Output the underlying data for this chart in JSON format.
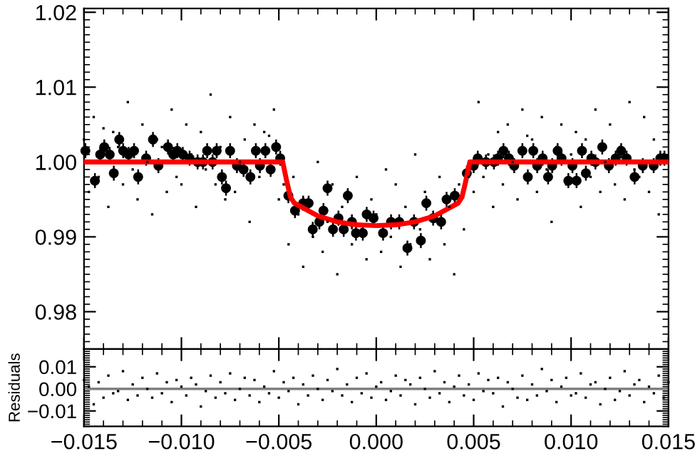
{
  "chart_data": [
    {
      "type": "scatter",
      "xlim": [
        -0.015,
        0.015
      ],
      "xticks": [
        -0.015,
        -0.01,
        -0.005,
        0.0,
        0.005,
        0.01,
        0.015
      ],
      "ylim": [
        0.975,
        1.0205
      ],
      "yticks": [
        {
          "value": 0.98,
          "label": "0.98"
        },
        {
          "value": 0.99,
          "label": "0.99"
        },
        {
          "value": 1.0,
          "label": "1.00"
        },
        {
          "value": 1.01,
          "label": "1.01"
        },
        {
          "value": 1.02,
          "label": "1.02"
        }
      ],
      "tick_labels": "y",
      "grid": false,
      "legend": false,
      "series": [
        {
          "marker": "square",
          "color": "#000000",
          "x": [
            -0.015,
            -0.01475,
            -0.0145,
            -0.01425,
            -0.014,
            -0.01375,
            -0.0135,
            -0.01325,
            -0.013,
            -0.01275,
            -0.0125,
            -0.01225,
            -0.012,
            -0.01175,
            -0.0115,
            -0.01125,
            -0.011,
            -0.01075,
            -0.0105,
            -0.01025,
            -0.01,
            -0.00975,
            -0.0095,
            -0.00925,
            -0.009,
            -0.00875,
            -0.0085,
            -0.00825,
            -0.008,
            -0.00775,
            -0.0075,
            -0.00725,
            -0.007,
            -0.00675,
            -0.0065,
            -0.00625,
            -0.006,
            -0.00575,
            -0.0055,
            -0.00525,
            -0.005,
            -0.00475,
            -0.0045,
            -0.00425,
            -0.004,
            -0.00375,
            -0.0035,
            -0.00325,
            -0.003,
            -0.00275,
            -0.0025,
            -0.00225,
            -0.002,
            -0.00175,
            -0.0015,
            -0.00125,
            -0.001,
            -0.00075,
            -0.0005,
            -0.00025,
            0.0,
            0.00025,
            0.0005,
            0.00075,
            0.001,
            0.00125,
            0.0015,
            0.00175,
            0.002,
            0.00225,
            0.0025,
            0.00275,
            0.003,
            0.00325,
            0.0035,
            0.00375,
            0.004,
            0.00425,
            0.0045,
            0.00475,
            0.005,
            0.00525,
            0.0055,
            0.00575,
            0.006,
            0.00625,
            0.0065,
            0.00675,
            0.007,
            0.00725,
            0.0075,
            0.00775,
            0.008,
            0.00825,
            0.0085,
            0.00875,
            0.009,
            0.00925,
            0.0095,
            0.00975,
            0.01,
            0.01025,
            0.0105,
            0.01075,
            0.011,
            0.01125,
            0.0115,
            0.01175,
            0.012,
            0.01225,
            0.0125,
            0.01275,
            0.013,
            0.01325,
            0.0135,
            0.01375,
            0.014,
            0.01425,
            0.0145,
            0.01475,
            0.015
          ],
          "values": [
            1.003,
            0.996,
            1.006,
            0.998,
            1.0045,
            0.994,
            1.004,
            1.002,
            0.997,
            1.008,
            0.999,
            0.995,
            1.005,
            1.0,
            0.993,
            1.003,
            1.002,
            0.996,
            1.007,
            0.998,
            0.997,
            1.005,
            1.001,
            0.994,
            1.004,
            0.999,
            1.009,
            0.997,
            1.002,
            0.995,
            1.006,
            0.996,
            1.0,
            1.003,
            0.992,
            1.005,
            0.998,
            1.004,
            1.0035,
            1.007,
            0.995,
            0.997,
            0.989,
            0.998,
            0.993,
            0.986,
            0.995,
            0.99,
            1.0,
            0.988,
            0.992,
            0.997,
            0.985,
            0.994,
            0.996,
            0.989,
            0.998,
            0.991,
            0.987,
            0.995,
            0.993,
            0.988,
            0.999,
            0.99,
            0.997,
            0.986,
            0.994,
            0.989,
            1.001,
            0.991,
            0.996,
            0.987,
            0.992,
            0.998,
            0.989,
            0.994,
            0.985,
            0.997,
            0.991,
            0.998,
            0.996,
            1.008,
            0.998,
            1.001,
            0.994,
            1.004,
            0.997,
            1.005,
            1.0,
            0.995,
            1.007,
            1.0035,
            1.003,
            0.996,
            1.006,
            0.999,
            0.992,
            1.002,
            1.005,
            0.997,
            1.001,
            1.004,
            0.994,
            1.003,
            0.998,
            1.007,
            0.996,
            1.0,
            1.005,
            0.997,
            1.002,
            0.995,
            1.008,
            0.999,
            0.998,
            1.006,
            0.996,
            1.003,
            0.993,
            1.001,
            1.004
          ]
        },
        {
          "marker": "circle",
          "color": "#000000",
          "x": [
            -0.01493,
            -0.01444,
            -0.01417,
            -0.01396,
            -0.01368,
            -0.01347,
            -0.01319,
            -0.01299,
            -0.01271,
            -0.01243,
            -0.01222,
            -0.01181,
            -0.01146,
            -0.01118,
            -0.01069,
            -0.01042,
            -0.01021,
            -0.00993,
            -0.00958,
            -0.00917,
            -0.00889,
            -0.00868,
            -0.0084,
            -0.00819,
            -0.00792,
            -0.00771,
            -0.0075,
            -0.00715,
            -0.00681,
            -0.00646,
            -0.00618,
            -0.00597,
            -0.00569,
            -0.00542,
            -0.00514,
            -0.00493,
            -0.00451,
            -0.00417,
            -0.00375,
            -0.00347,
            -0.00326,
            -0.00292,
            -0.00271,
            -0.0025,
            -0.00222,
            -0.00194,
            -0.00167,
            -0.00146,
            -0.00125,
            -0.00104,
            -0.00069,
            -0.00049,
            -0.00014,
            0.00035,
            0.00076,
            0.00118,
            0.0016,
            0.00194,
            0.00229,
            0.00257,
            0.00292,
            0.00333,
            0.00361,
            0.00403,
            0.00465,
            0.005,
            0.00521,
            0.00563,
            0.00604,
            0.00625,
            0.00653,
            0.00681,
            0.00708,
            0.0075,
            0.00778,
            0.00806,
            0.00826,
            0.00854,
            0.00882,
            0.00903,
            0.00931,
            0.00951,
            0.00986,
            0.01007,
            0.01028,
            0.01056,
            0.01076,
            0.01104,
            0.01125,
            0.0116,
            0.01194,
            0.01229,
            0.01257,
            0.01285,
            0.01326,
            0.01368,
            0.01424,
            0.01458,
            0.01479
          ],
          "values": [
            1.0015,
            0.9975,
            1.001,
            1.002,
            1.001,
            0.9985,
            1.003,
            1.0015,
            1.001,
            1.0015,
            0.998,
            1.0005,
            1.003,
            0.9995,
            1.002,
            1.001,
            1.0015,
            1.001,
            1.0005,
            1.0,
            1.0,
            1.0015,
            1.0,
            1.0015,
            0.998,
            0.9965,
            1.0015,
            0.9995,
            0.999,
            0.998,
            1.0015,
            0.9995,
            1.0015,
            0.999,
            1.002,
            1.0005,
            0.9955,
            0.9935,
            0.9945,
            0.9945,
            0.991,
            0.992,
            0.9935,
            0.9965,
            0.991,
            0.9925,
            0.991,
            0.9955,
            0.992,
            0.9905,
            0.9905,
            0.993,
            0.9925,
            0.9905,
            0.992,
            0.992,
            0.9885,
            0.992,
            0.9895,
            0.9945,
            0.9925,
            0.992,
            0.995,
            0.9955,
            0.9985,
            0.9995,
            1.0005,
            1.0,
            1.0,
            1.0005,
            1.0015,
            1.0005,
            0.9995,
            1.0015,
            0.998,
            1.0015,
            0.9995,
            1.0005,
            0.998,
            0.9995,
            1.0015,
            1.0005,
            0.9975,
            0.9995,
            0.9975,
            1.0015,
            0.9985,
            1.0005,
            1.0,
            1.002,
            0.9995,
            1.0005,
            1.0015,
            1.0005,
            0.998,
            0.9995,
            0.9995,
            1.0005,
            1.0005
          ],
          "errors": [
            0.001,
            0.001,
            0.001,
            0.001,
            0.001,
            0.001,
            0.001,
            0.001,
            0.001,
            0.001,
            0.001,
            0.001,
            0.001,
            0.001,
            0.001,
            0.001,
            0.001,
            0.001,
            0.001,
            0.001,
            0.001,
            0.001,
            0.001,
            0.001,
            0.001,
            0.001,
            0.001,
            0.001,
            0.001,
            0.001,
            0.001,
            0.001,
            0.001,
            0.001,
            0.001,
            0.001,
            0.001,
            0.001,
            0.001,
            0.001,
            0.001,
            0.001,
            0.001,
            0.001,
            0.001,
            0.001,
            0.001,
            0.001,
            0.001,
            0.001,
            0.001,
            0.001,
            0.001,
            0.001,
            0.001,
            0.001,
            0.001,
            0.001,
            0.001,
            0.001,
            0.001,
            0.001,
            0.001,
            0.001,
            0.001,
            0.001,
            0.001,
            0.001,
            0.001,
            0.001,
            0.001,
            0.001,
            0.001,
            0.001,
            0.001,
            0.001,
            0.001,
            0.001,
            0.001,
            0.001,
            0.001,
            0.001,
            0.001,
            0.001,
            0.001,
            0.001,
            0.001,
            0.001,
            0.001,
            0.001,
            0.001,
            0.001,
            0.001,
            0.001,
            0.001,
            0.001,
            0.001,
            0.001,
            0.001
          ]
        },
        {
          "type": "line",
          "marker": "none",
          "line_style": "solid",
          "color": "#ff0000",
          "x": [
            -0.015,
            -0.0048,
            -0.0046,
            -0.0044,
            -0.0042,
            -0.003,
            -0.002,
            -0.001,
            0.0,
            0.001,
            0.002,
            0.003,
            0.0042,
            0.0044,
            0.0046,
            0.0048,
            0.015
          ],
          "values": [
            1.0,
            1.0,
            0.9975,
            0.9953,
            0.9945,
            0.9928,
            0.992,
            0.9916,
            0.9915,
            0.9916,
            0.992,
            0.9928,
            0.9945,
            0.9953,
            0.9975,
            1.0,
            1.0
          ]
        }
      ]
    },
    {
      "type": "scatter",
      "ylabel": "Residuals",
      "xlim": [
        -0.015,
        0.015
      ],
      "xticks": [
        {
          "value": -0.015,
          "label": "−0.015"
        },
        {
          "value": -0.01,
          "label": "−0.010"
        },
        {
          "value": -0.005,
          "label": "−0.005"
        },
        {
          "value": 0.0,
          "label": "0.000"
        },
        {
          "value": 0.005,
          "label": "0.005"
        },
        {
          "value": 0.01,
          "label": "0.010"
        },
        {
          "value": 0.015,
          "label": "0.015"
        }
      ],
      "ylim": [
        -0.017,
        0.018
      ],
      "yticks": [
        {
          "value": -0.01,
          "label": "−0.01"
        },
        {
          "value": 0.0,
          "label": "0.00"
        },
        {
          "value": 0.01,
          "label": "0.01"
        }
      ],
      "grid": false,
      "legend": false,
      "ref_lines": [
        {
          "axis": "y",
          "value": 0.0,
          "color": "#808080"
        }
      ],
      "series": [
        {
          "marker": "square",
          "color": "#000000",
          "x": [
            -0.015,
            -0.01475,
            -0.0145,
            -0.01425,
            -0.014,
            -0.01375,
            -0.0135,
            -0.01325,
            -0.013,
            -0.01275,
            -0.0125,
            -0.01225,
            -0.012,
            -0.01175,
            -0.0115,
            -0.01125,
            -0.011,
            -0.01075,
            -0.0105,
            -0.01025,
            -0.01,
            -0.00975,
            -0.0095,
            -0.00925,
            -0.009,
            -0.00875,
            -0.0085,
            -0.00825,
            -0.008,
            -0.00775,
            -0.0075,
            -0.00725,
            -0.007,
            -0.00675,
            -0.0065,
            -0.00625,
            -0.006,
            -0.00575,
            -0.0055,
            -0.00525,
            -0.005,
            -0.00475,
            -0.0045,
            -0.00425,
            -0.004,
            -0.00375,
            -0.0035,
            -0.00325,
            -0.003,
            -0.00275,
            -0.0025,
            -0.00225,
            -0.002,
            -0.00175,
            -0.0015,
            -0.00125,
            -0.001,
            -0.00075,
            -0.0005,
            -0.00025,
            0.0,
            0.00025,
            0.0005,
            0.00075,
            0.001,
            0.00125,
            0.0015,
            0.00175,
            0.002,
            0.00225,
            0.0025,
            0.00275,
            0.003,
            0.00325,
            0.0035,
            0.00375,
            0.004,
            0.00425,
            0.0045,
            0.00475,
            0.005,
            0.00525,
            0.0055,
            0.00575,
            0.006,
            0.00625,
            0.0065,
            0.00675,
            0.007,
            0.00725,
            0.0075,
            0.00775,
            0.008,
            0.00825,
            0.0085,
            0.00875,
            0.009,
            0.00925,
            0.0095,
            0.00975,
            0.01,
            0.01025,
            0.0105,
            0.01075,
            0.011,
            0.01125,
            0.0115,
            0.01175,
            0.012,
            0.01225,
            0.0125,
            0.01275,
            0.013,
            0.01325,
            0.0135,
            0.01375,
            0.014,
            0.01425,
            0.0145,
            0.01475,
            0.015
          ],
          "values": [
            0.004,
            0.001,
            -0.007,
            0.003,
            -0.004,
            0.006,
            -0.002,
            -0.001,
            0.008,
            -0.005,
            0.002,
            -0.003,
            0.005,
            0.0,
            -0.004,
            0.007,
            -0.002,
            0.003,
            -0.006,
            0.004,
            0.001,
            -0.003,
            0.005,
            0.002,
            -0.008,
            -0.001,
            0.006,
            -0.004,
            0.003,
            -0.002,
            0.007,
            -0.005,
            0.0,
            0.005,
            -0.003,
            0.004,
            -0.006,
            0.001,
            -0.002,
            0.008,
            -0.004,
            0.003,
            -0.001,
            0.005,
            -0.007,
            0.002,
            -0.003,
            0.006,
            0.0,
            -0.005,
            0.004,
            -0.001,
            0.009,
            -0.003,
            0.002,
            -0.006,
            0.005,
            -0.002,
            0.007,
            -0.004,
            0.001,
            0.003,
            -0.005,
            -0.001,
            0.006,
            -0.003,
            0.004,
            0.002,
            -0.007,
            0.005,
            0.0,
            -0.004,
            0.008,
            -0.002,
            0.003,
            -0.006,
            0.001,
            0.006,
            -0.003,
            0.002,
            -0.005,
            0.007,
            -0.001,
            0.004,
            -0.002,
            0.005,
            -0.008,
            0.003,
            0.0,
            -0.004,
            0.006,
            -0.005,
            0.002,
            -0.003,
            0.009,
            -0.001,
            0.004,
            -0.006,
            0.001,
            0.005,
            -0.003,
            -0.002,
            0.007,
            -0.004,
            0.002,
            0.003,
            -0.007,
            0.0,
            0.005,
            -0.005,
            -0.001,
            0.008,
            -0.003,
            0.002,
            0.004,
            -0.006,
            0.001,
            -0.002,
            0.006,
            -0.004,
            0.003
          ]
        }
      ]
    }
  ]
}
